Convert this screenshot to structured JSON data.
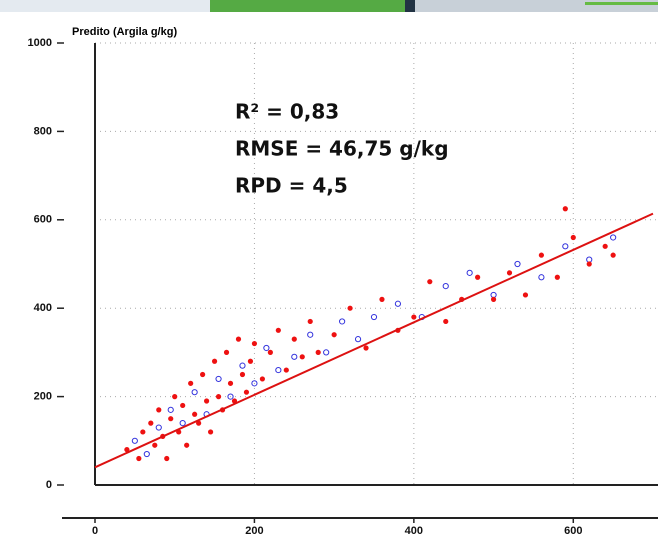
{
  "chart_data": {
    "type": "scatter",
    "y_label": "Predito (Argila g/kg)",
    "annotations": [
      "R² = 0,83",
      "RMSE = 46,75 g/kg",
      "RPD = 4,5"
    ],
    "xlim": [
      0,
      700
    ],
    "ylim": [
      0,
      1000
    ],
    "xticks": [
      0,
      200,
      400,
      600
    ],
    "yticks": [
      0,
      200,
      400,
      600,
      800,
      1000
    ],
    "grid": true,
    "series": [
      {
        "color": "#3333dd",
        "marker": "open",
        "x": [
          50,
          65,
          80,
          95,
          110,
          125,
          140,
          155,
          170,
          185,
          200,
          215,
          230,
          250,
          270,
          290,
          310,
          330,
          350,
          380,
          410,
          440,
          470,
          500,
          530,
          560,
          590,
          620,
          650
        ],
        "y": [
          100,
          70,
          130,
          170,
          140,
          210,
          160,
          240,
          200,
          270,
          230,
          310,
          260,
          290,
          340,
          300,
          370,
          330,
          380,
          410,
          380,
          450,
          480,
          430,
          500,
          470,
          540,
          510,
          560
        ]
      },
      {
        "color": "#ee1111",
        "marker": "filled",
        "x": [
          40,
          55,
          60,
          70,
          75,
          80,
          85,
          90,
          95,
          100,
          105,
          110,
          115,
          120,
          125,
          130,
          135,
          140,
          145,
          150,
          155,
          160,
          165,
          170,
          175,
          180,
          185,
          190,
          195,
          200,
          210,
          220,
          230,
          240,
          250,
          260,
          270,
          280,
          300,
          320,
          340,
          360,
          380,
          400,
          420,
          440,
          460,
          480,
          500,
          520,
          540,
          560,
          580,
          590,
          600,
          620,
          640,
          650
        ],
        "y": [
          80,
          60,
          120,
          140,
          90,
          170,
          110,
          60,
          150,
          200,
          120,
          180,
          90,
          230,
          160,
          140,
          250,
          190,
          120,
          280,
          200,
          170,
          300,
          230,
          190,
          330,
          250,
          210,
          280,
          320,
          240,
          300,
          350,
          260,
          330,
          290,
          370,
          300,
          340,
          400,
          310,
          420,
          350,
          380,
          460,
          370,
          420,
          470,
          420,
          480,
          430,
          520,
          470,
          625,
          560,
          500,
          540,
          520
        ]
      }
    ],
    "fit_line": {
      "color": "#dd1111",
      "x": [
        0,
        700
      ],
      "y": [
        40,
        614
      ]
    }
  }
}
